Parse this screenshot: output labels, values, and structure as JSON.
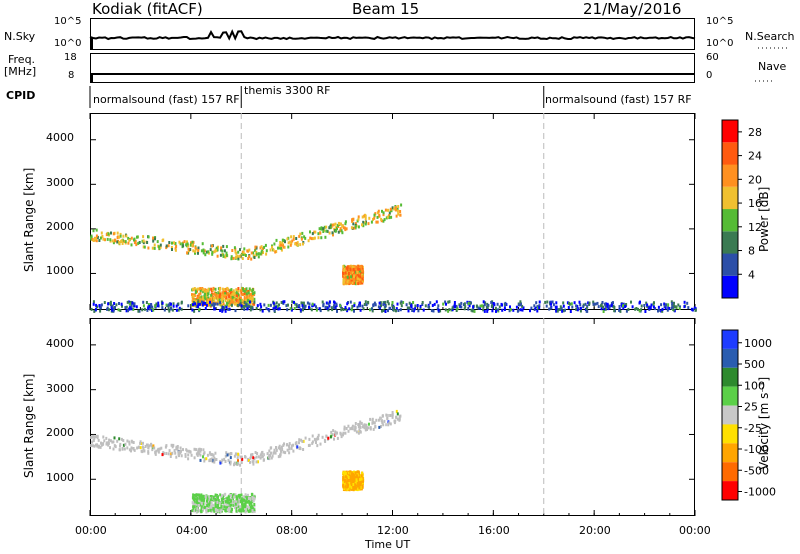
{
  "header": {
    "station": "Kodiak (fitACF)",
    "beam": "Beam 15",
    "date": "21/May/2016"
  },
  "top_panels": {
    "nsky_label": "N.Sky",
    "nsky_ticks": [
      "10^5",
      "10^0"
    ],
    "nsearch_label": "N.Search",
    "nsearch_ticks": [
      "10^5",
      "10^0"
    ],
    "freq_label": "Freq.",
    "freq_unit": "[MHz]",
    "freq_ticks": [
      "18",
      "8"
    ],
    "nave_label": "Nave",
    "nave_ticks": [
      "60",
      "0"
    ],
    "cpid_label": "CPID",
    "cpid_segments": [
      {
        "label": "normalsound (fast) 157 RF",
        "start": "00:00",
        "end": "06:00"
      },
      {
        "label": "themis 3300 RF",
        "start": "06:00",
        "end": "18:00"
      },
      {
        "label": "normalsound (fast) 157 RF",
        "start": "18:00",
        "end": "24:00"
      }
    ]
  },
  "colors": {
    "power_scale": [
      "#0000ff",
      "#2c4fa8",
      "#3a7a52",
      "#55bb35",
      "#f0c030",
      "#ff9020",
      "#ff5a10",
      "#ff0000"
    ],
    "velocity_scale": [
      "#ff0000",
      "#ff6a00",
      "#ffa500",
      "#ffe000",
      "#c8c8c8",
      "#5bd048",
      "#2e8a2e",
      "#2a5db0",
      "#1e3cff"
    ],
    "ground_scatter": "#bebebe"
  },
  "chart_data": [
    {
      "type": "heatmap",
      "panel": "power",
      "ylabel": "Slant Range [km]",
      "ylim": [
        180,
        4600
      ],
      "xlim": [
        "00:00",
        "24:00"
      ],
      "yticks": [
        "1000",
        "2000",
        "3000",
        "4000"
      ],
      "colorbar": {
        "label": "Power [dB]",
        "ticks": [
          "4",
          "8",
          "12",
          "16",
          "20",
          "24",
          "28"
        ],
        "range": [
          0,
          30
        ]
      },
      "features": [
        {
          "name": "band",
          "t_start": 0.0,
          "t_end": 12.3,
          "range_start_km": 1900,
          "range_mid_km": 1450,
          "range_end_km": 2450,
          "mean_power_db": 16
        },
        {
          "name": "patch",
          "t_start": 10.0,
          "t_end": 10.8,
          "range_low_km": 800,
          "range_high_km": 1200,
          "mean_power_db": 20
        },
        {
          "name": "patch",
          "t_start": 4.0,
          "t_end": 6.5,
          "range_low_km": 300,
          "range_high_km": 700,
          "mean_power_db": 18
        },
        {
          "name": "near_range",
          "t_start": 0.0,
          "t_end": 24.0,
          "range_low_km": 180,
          "range_high_km": 400,
          "mean_power_db": 6
        }
      ]
    },
    {
      "type": "heatmap",
      "panel": "velocity",
      "xlabel": "Time UT",
      "ylabel": "Slant Range [km]",
      "ylim": [
        180,
        4600
      ],
      "xlim": [
        "00:00",
        "24:00"
      ],
      "xticks": [
        "00:00",
        "04:00",
        "08:00",
        "12:00",
        "16:00",
        "20:00",
        "00:00"
      ],
      "yticks": [
        "1000",
        "2000",
        "3000",
        "4000"
      ],
      "colorbar": {
        "label": "Velocity [m s⁻¹]",
        "ticks": [
          "1000",
          "500",
          "100",
          "25",
          "-25",
          "-100",
          "-500",
          "-1000"
        ],
        "range": [
          -1000,
          1000
        ]
      },
      "features": [
        {
          "name": "ground_scatter_band",
          "t_start": 0.0,
          "t_end": 12.3,
          "range_start_km": 1900,
          "range_mid_km": 1450,
          "range_end_km": 2450,
          "velocity_ms": 0
        },
        {
          "name": "patch",
          "t_start": 10.0,
          "t_end": 10.8,
          "range_low_km": 800,
          "range_high_km": 1200,
          "velocity_ms": -400
        },
        {
          "name": "patch",
          "t_start": 4.0,
          "t_end": 6.5,
          "range_low_km": 300,
          "range_high_km": 700,
          "velocity_ms": 150
        }
      ]
    }
  ]
}
